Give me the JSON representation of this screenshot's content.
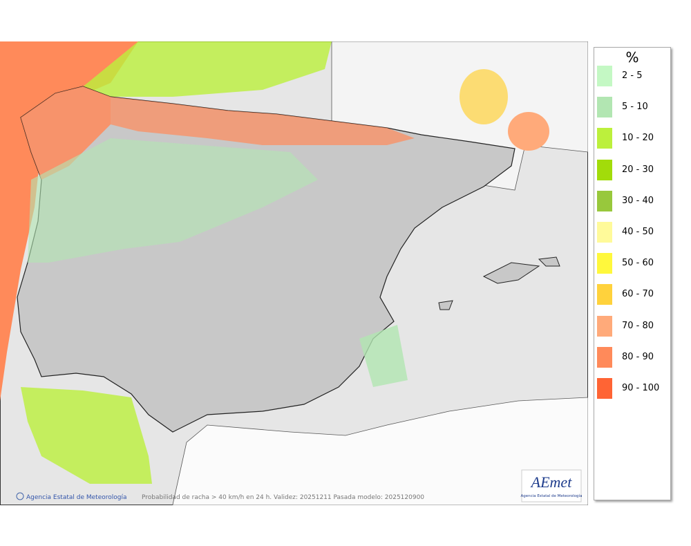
{
  "legend": {
    "title": "%",
    "items": [
      {
        "label": "2 - 5",
        "color": "#c4f8c4"
      },
      {
        "label": "5 - 10",
        "color": "#b2e6b2"
      },
      {
        "label": "10 - 20",
        "color": "#bcf03c"
      },
      {
        "label": "20 - 30",
        "color": "#a2dc0a"
      },
      {
        "label": "30 - 40",
        "color": "#98c83c"
      },
      {
        "label": "40 - 50",
        "color": "#fffa9a"
      },
      {
        "label": "50 - 60",
        "color": "#fff83c"
      },
      {
        "label": "60 - 70",
        "color": "#ffd23c"
      },
      {
        "label": "70 - 80",
        "color": "#ffaa7a"
      },
      {
        "label": "80 - 90",
        "color": "#ff8a5a"
      },
      {
        "label": "90 - 100",
        "color": "#ff6434"
      }
    ]
  },
  "footer": {
    "credit": "Agencia Estatal de Meteorología",
    "caption": "Probabilidad de racha > 40 km/h en 24 h. Validez: 20251211 Pasada modelo: 2025120900"
  },
  "logo": {
    "name": "AEmet",
    "subtitle": "Agencia Estatal de Meteorología"
  }
}
